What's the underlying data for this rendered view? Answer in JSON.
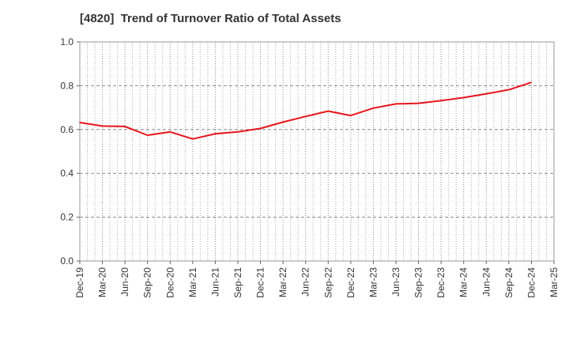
{
  "title": "[4820]  Trend of Turnover Ratio of Total Assets",
  "chart_data": {
    "type": "line",
    "title": "[4820]  Trend of Turnover Ratio of Total Assets",
    "xlabel": "",
    "ylabel": "",
    "ylim": [
      0.0,
      1.0
    ],
    "yticks": [
      "0.0",
      "0.2",
      "0.4",
      "0.6",
      "0.8",
      "1.0"
    ],
    "x_tick_labels": [
      "Dec-19",
      "Mar-20",
      "Jun-20",
      "Sep-20",
      "Dec-20",
      "Mar-21",
      "Jun-21",
      "Sep-21",
      "Dec-21",
      "Mar-22",
      "Jun-22",
      "Sep-22",
      "Dec-22",
      "Mar-23",
      "Jun-23",
      "Sep-23",
      "Dec-23",
      "Mar-24",
      "Jun-24",
      "Sep-24",
      "Dec-24",
      "Mar-25"
    ],
    "grid": true,
    "series": [
      {
        "color": "#e8141b",
        "x": [
          "Dec-19",
          "Mar-20",
          "Jun-20",
          "Sep-20",
          "Dec-20",
          "Mar-21",
          "Jun-21",
          "Sep-21",
          "Dec-21",
          "Mar-22",
          "Jun-22",
          "Sep-22",
          "Dec-22",
          "Mar-23",
          "Jun-23",
          "Sep-23",
          "Dec-23",
          "Mar-24",
          "Jun-24",
          "Sep-24",
          "Dec-24"
        ],
        "values": [
          0.632,
          0.616,
          0.614,
          0.574,
          0.589,
          0.557,
          0.581,
          0.589,
          0.605,
          0.634,
          0.66,
          0.684,
          0.664,
          0.698,
          0.717,
          0.72,
          0.732,
          0.746,
          0.763,
          0.782,
          0.815
        ]
      }
    ]
  }
}
